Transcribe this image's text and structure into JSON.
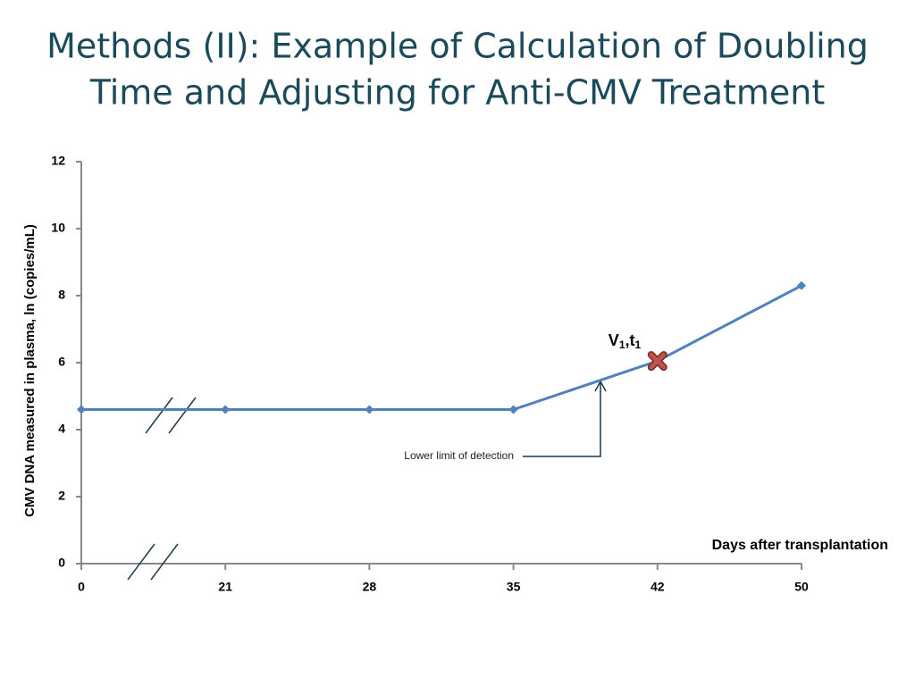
{
  "chart_data": {
    "type": "line",
    "title_lines": [
      "Methods (II): Example of Calculation of Doubling",
      "Time and Adjusting for  Anti-CMV Treatment"
    ],
    "y_label": "CMV DNA measured in plasma, ln (copies/mL)",
    "x_label": "Days after transplantation",
    "categories": [
      "0",
      "21",
      "28",
      "35",
      "42",
      "50"
    ],
    "series": [
      {
        "name": "CMV DNA",
        "color": "#4f81bd",
        "values": [
          4.6,
          4.6,
          4.6,
          4.6,
          6.05,
          8.3
        ]
      }
    ],
    "highlight": {
      "index": 4,
      "color": "#c0504d",
      "label_parts": [
        "V",
        "1",
        ",t",
        "1"
      ]
    },
    "annotation": "Lower limit of detection",
    "ylim": [
      0,
      12
    ],
    "yticks": [
      0,
      2,
      4,
      6,
      8,
      10,
      12
    ]
  }
}
